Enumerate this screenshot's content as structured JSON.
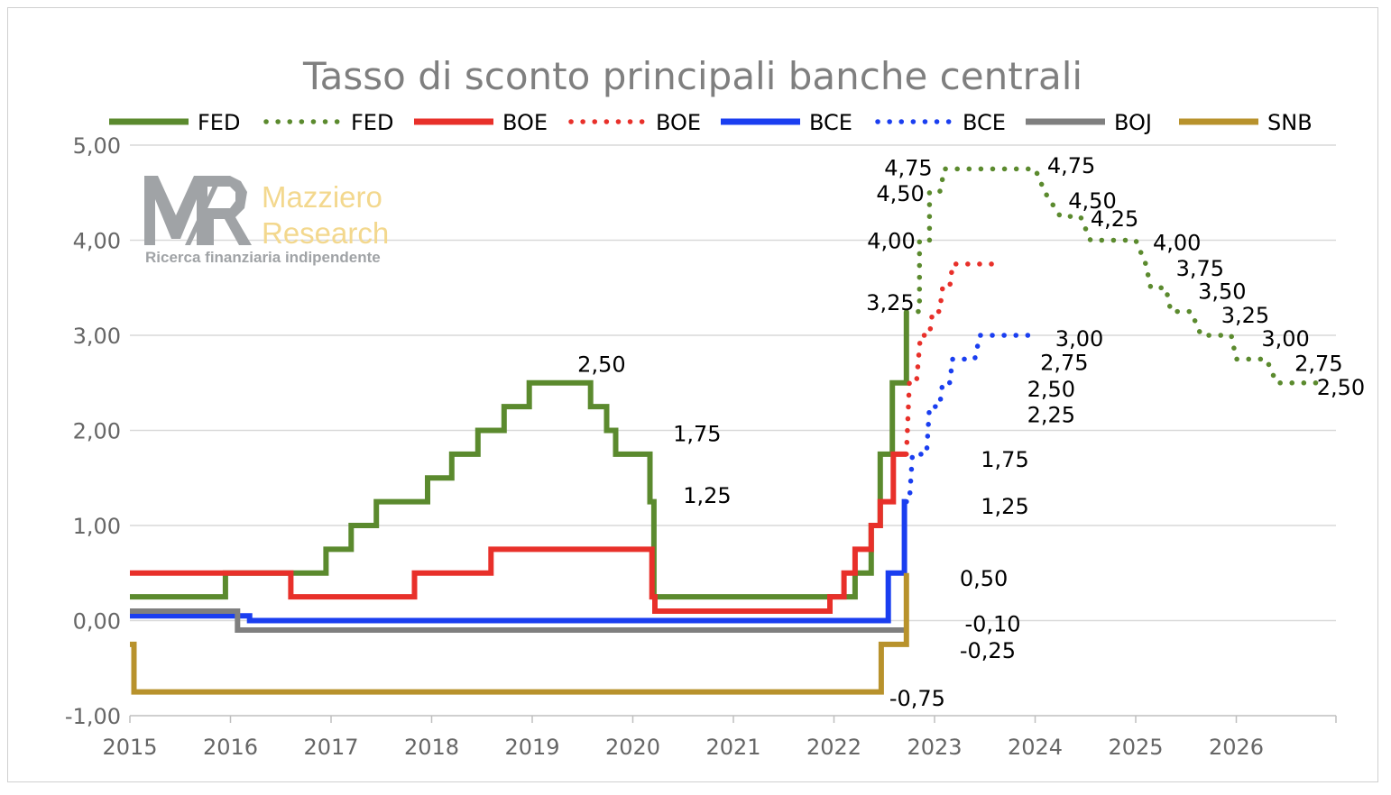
{
  "chart_data": {
    "type": "line",
    "title": "Tasso di sconto principali banche centrali",
    "xlabel": "",
    "ylabel": "",
    "xlim": [
      2015,
      2027.0
    ],
    "ylim": [
      -1,
      5
    ],
    "grid": true,
    "legend_position": "top",
    "x_ticks": [
      "2015",
      "2016",
      "2017",
      "2018",
      "2019",
      "2020",
      "2021",
      "2022",
      "2023",
      "2024",
      "2025",
      "2026"
    ],
    "y_ticks": [
      "5,00",
      "4,00",
      "3,00",
      "2,00",
      "1,00",
      "0,00",
      "-1,00"
    ],
    "series": [
      {
        "name": "FED",
        "style": "solid",
        "color": "#5b8a2e",
        "points": [
          [
            2015.0,
            0.25
          ],
          [
            2015.95,
            0.25
          ],
          [
            2015.95,
            0.5
          ],
          [
            2016.95,
            0.5
          ],
          [
            2016.95,
            0.75
          ],
          [
            2017.2,
            0.75
          ],
          [
            2017.2,
            1.0
          ],
          [
            2017.45,
            1.0
          ],
          [
            2017.45,
            1.25
          ],
          [
            2017.96,
            1.25
          ],
          [
            2017.96,
            1.5
          ],
          [
            2018.2,
            1.5
          ],
          [
            2018.2,
            1.75
          ],
          [
            2018.46,
            1.75
          ],
          [
            2018.46,
            2.0
          ],
          [
            2018.72,
            2.0
          ],
          [
            2018.72,
            2.25
          ],
          [
            2018.97,
            2.25
          ],
          [
            2018.97,
            2.5
          ],
          [
            2019.58,
            2.5
          ],
          [
            2019.58,
            2.25
          ],
          [
            2019.74,
            2.25
          ],
          [
            2019.74,
            2.0
          ],
          [
            2019.83,
            2.0
          ],
          [
            2019.83,
            1.75
          ],
          [
            2020.17,
            1.75
          ],
          [
            2020.17,
            1.25
          ],
          [
            2020.21,
            1.25
          ],
          [
            2020.21,
            0.25
          ],
          [
            2022.21,
            0.25
          ],
          [
            2022.21,
            0.5
          ],
          [
            2022.37,
            0.5
          ],
          [
            2022.37,
            1.0
          ],
          [
            2022.46,
            1.0
          ],
          [
            2022.46,
            1.75
          ],
          [
            2022.58,
            1.75
          ],
          [
            2022.58,
            2.5
          ],
          [
            2022.72,
            2.5
          ],
          [
            2022.72,
            3.25
          ]
        ]
      },
      {
        "name": "FED",
        "style": "dotted",
        "color": "#5b8a2e",
        "points": [
          [
            2022.72,
            3.25
          ],
          [
            2022.85,
            3.25
          ],
          [
            2022.85,
            4.0
          ],
          [
            2022.95,
            4.0
          ],
          [
            2022.95,
            4.5
          ],
          [
            2023.05,
            4.5
          ],
          [
            2023.1,
            4.75
          ],
          [
            2024.0,
            4.75
          ],
          [
            2024.1,
            4.5
          ],
          [
            2024.25,
            4.25
          ],
          [
            2024.45,
            4.25
          ],
          [
            2024.55,
            4.0
          ],
          [
            2025.0,
            4.0
          ],
          [
            2025.1,
            3.75
          ],
          [
            2025.15,
            3.5
          ],
          [
            2025.3,
            3.5
          ],
          [
            2025.35,
            3.25
          ],
          [
            2025.55,
            3.25
          ],
          [
            2025.65,
            3.0
          ],
          [
            2025.95,
            3.0
          ],
          [
            2026.0,
            2.75
          ],
          [
            2026.3,
            2.75
          ],
          [
            2026.4,
            2.5
          ],
          [
            2026.88,
            2.5
          ]
        ]
      },
      {
        "name": "BOE",
        "style": "solid",
        "color": "#e8302a",
        "points": [
          [
            2015.0,
            0.5
          ],
          [
            2016.6,
            0.5
          ],
          [
            2016.6,
            0.25
          ],
          [
            2017.83,
            0.25
          ],
          [
            2017.83,
            0.5
          ],
          [
            2018.59,
            0.5
          ],
          [
            2018.59,
            0.75
          ],
          [
            2020.19,
            0.75
          ],
          [
            2020.19,
            0.25
          ],
          [
            2020.22,
            0.25
          ],
          [
            2020.22,
            0.1
          ],
          [
            2021.96,
            0.1
          ],
          [
            2021.96,
            0.25
          ],
          [
            2022.1,
            0.25
          ],
          [
            2022.1,
            0.5
          ],
          [
            2022.21,
            0.5
          ],
          [
            2022.21,
            0.75
          ],
          [
            2022.37,
            0.75
          ],
          [
            2022.37,
            1.0
          ],
          [
            2022.46,
            1.0
          ],
          [
            2022.46,
            1.25
          ],
          [
            2022.59,
            1.25
          ],
          [
            2022.59,
            1.75
          ],
          [
            2022.72,
            1.75
          ]
        ]
      },
      {
        "name": "BOE",
        "style": "dotted",
        "color": "#e8302a",
        "points": [
          [
            2022.72,
            1.75
          ],
          [
            2022.75,
            2.5
          ],
          [
            2022.82,
            2.5
          ],
          [
            2022.86,
            3.0
          ],
          [
            2022.95,
            3.0
          ],
          [
            2022.98,
            3.25
          ],
          [
            2023.05,
            3.25
          ],
          [
            2023.08,
            3.5
          ],
          [
            2023.15,
            3.5
          ],
          [
            2023.18,
            3.75
          ],
          [
            2023.6,
            3.75
          ]
        ]
      },
      {
        "name": "BCE",
        "style": "solid",
        "color": "#1a3ef0",
        "points": [
          [
            2015.0,
            0.05
          ],
          [
            2016.19,
            0.05
          ],
          [
            2016.19,
            0.0
          ],
          [
            2022.54,
            0.0
          ],
          [
            2022.54,
            0.5
          ],
          [
            2022.7,
            0.5
          ],
          [
            2022.7,
            1.25
          ],
          [
            2022.72,
            1.25
          ]
        ]
      },
      {
        "name": "BCE",
        "style": "dotted",
        "color": "#1a3ef0",
        "points": [
          [
            2022.72,
            1.25
          ],
          [
            2022.75,
            1.25
          ],
          [
            2022.78,
            1.75
          ],
          [
            2022.92,
            1.75
          ],
          [
            2022.95,
            2.25
          ],
          [
            2023.05,
            2.25
          ],
          [
            2023.08,
            2.5
          ],
          [
            2023.15,
            2.5
          ],
          [
            2023.18,
            2.75
          ],
          [
            2023.4,
            2.75
          ],
          [
            2023.45,
            3.0
          ],
          [
            2023.95,
            3.0
          ]
        ]
      },
      {
        "name": "BOJ",
        "style": "solid",
        "color": "#7f7f7f",
        "points": [
          [
            2015.0,
            0.1
          ],
          [
            2016.07,
            0.1
          ],
          [
            2016.07,
            -0.1
          ],
          [
            2022.72,
            -0.1
          ]
        ]
      },
      {
        "name": "SNB",
        "style": "solid",
        "color": "#b8922c",
        "points": [
          [
            2015.0,
            -0.25
          ],
          [
            2015.04,
            -0.25
          ],
          [
            2015.04,
            -0.75
          ],
          [
            2022.47,
            -0.75
          ],
          [
            2022.47,
            -0.25
          ],
          [
            2022.72,
            -0.25
          ],
          [
            2022.72,
            0.5
          ]
        ]
      }
    ],
    "data_labels": [
      {
        "text": "2,50",
        "x": 2019.45,
        "y": 2.7
      },
      {
        "text": "1,75",
        "x": 2020.4,
        "y": 1.97
      },
      {
        "text": "1,25",
        "x": 2020.5,
        "y": 1.32
      },
      {
        "text": "3,25",
        "x": 2022.32,
        "y": 3.35
      },
      {
        "text": "4,00",
        "x": 2022.33,
        "y": 4.0
      },
      {
        "text": "4,50",
        "x": 2022.42,
        "y": 4.5
      },
      {
        "text": "4,75",
        "x": 2022.5,
        "y": 4.77
      },
      {
        "text": "4,75",
        "x": 2024.12,
        "y": 4.79
      },
      {
        "text": "4,50",
        "x": 2024.33,
        "y": 4.42
      },
      {
        "text": "4,25",
        "x": 2024.55,
        "y": 4.23
      },
      {
        "text": "4,00",
        "x": 2025.17,
        "y": 3.98
      },
      {
        "text": "3,75",
        "x": 2025.4,
        "y": 3.71
      },
      {
        "text": "3,50",
        "x": 2025.62,
        "y": 3.47
      },
      {
        "text": "3,25",
        "x": 2025.85,
        "y": 3.22
      },
      {
        "text": "3,00",
        "x": 2026.25,
        "y": 2.97
      },
      {
        "text": "2,75",
        "x": 2026.58,
        "y": 2.71
      },
      {
        "text": "2,50",
        "x": 2026.8,
        "y": 2.46
      },
      {
        "text": "3,00",
        "x": 2024.2,
        "y": 2.97
      },
      {
        "text": "2,75",
        "x": 2024.05,
        "y": 2.72
      },
      {
        "text": "2,50",
        "x": 2023.92,
        "y": 2.44
      },
      {
        "text": "2,25",
        "x": 2023.92,
        "y": 2.17
      },
      {
        "text": "1,75",
        "x": 2023.46,
        "y": 1.7
      },
      {
        "text": "1,25",
        "x": 2023.46,
        "y": 1.21
      },
      {
        "text": "0,50",
        "x": 2023.25,
        "y": 0.45
      },
      {
        "text": "-0,10",
        "x": 2023.3,
        "y": -0.03
      },
      {
        "text": "-0,25",
        "x": 2023.25,
        "y": -0.31
      },
      {
        "text": "-0,75",
        "x": 2022.55,
        "y": -0.81
      }
    ]
  },
  "watermark": {
    "name_line1": "Mazziero",
    "name_line2": "Research",
    "tagline": "Ricerca finanziaria indipendente"
  }
}
